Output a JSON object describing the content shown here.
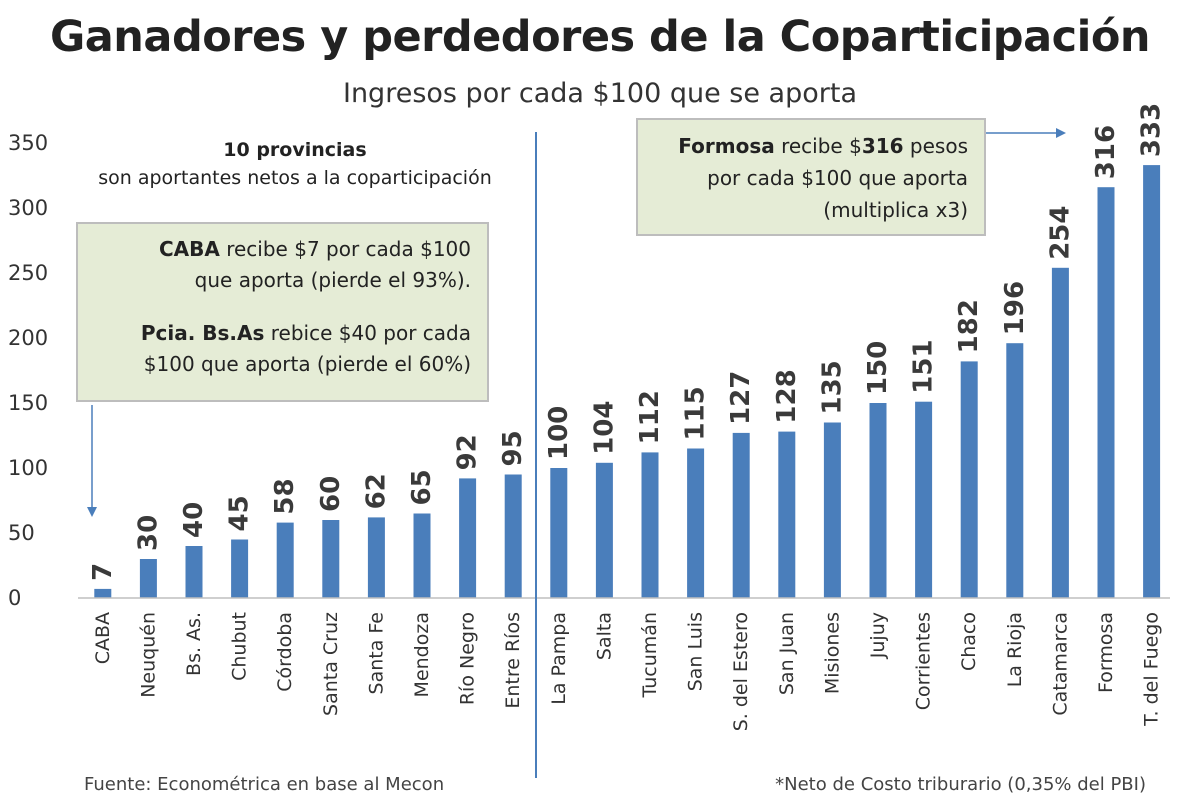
{
  "title": "Ganadores y perdedores de la Coparticipación",
  "subtitle": "Ingresos por cada $100 que se aporta",
  "chart_data": {
    "type": "bar",
    "categories": [
      "CABA",
      "Neuquén",
      "Bs. As.",
      "Chubut",
      "Córdoba",
      "Santa Cruz",
      "Santa Fe",
      "Mendoza",
      "Río Negro",
      "Entre Ríos",
      "La Pampa",
      "Salta",
      "Tucumán",
      "San Luis",
      "S. del Estero",
      "San Juan",
      "Misiones",
      "Jujuy",
      "Corrientes",
      "Chaco",
      "La Rioja",
      "Catamarca",
      "Formosa",
      "T. del Fuego"
    ],
    "values": [
      7,
      30,
      40,
      45,
      58,
      60,
      62,
      65,
      92,
      95,
      100,
      104,
      112,
      115,
      127,
      128,
      135,
      150,
      151,
      182,
      196,
      254,
      316,
      333
    ],
    "data_labels": [
      "7",
      "30",
      "40",
      "45",
      "58",
      "60",
      "62",
      "65",
      "92",
      "95",
      "100",
      "104",
      "112",
      "115",
      "127",
      "128",
      "135",
      "150",
      "151",
      "182",
      "196",
      "254",
      "316",
      "333"
    ],
    "yticks": [
      "0",
      "50",
      "100",
      "150",
      "200",
      "250",
      "300",
      "350"
    ],
    "ylim": [
      0,
      350
    ],
    "bar_color": "#4a7ebb",
    "grid": false,
    "divider_after_index": 9
  },
  "annotations": {
    "left_note": {
      "bold": "10 provincias",
      "text": "son aportantes netos a la coparticipación"
    },
    "caba_box": {
      "l1_bold": "CABA",
      "l1_rest": " recibe $7 por cada $100",
      "l2": "que aporta (pierde el 93%).",
      "l3_bold": "Pcia. Bs.As",
      "l3_rest": " rebice $40 por cada",
      "l4": "$100 que aporta (pierde el 60%)"
    },
    "formosa_box": {
      "l1_bold": "Formosa",
      "l1_mid": " recibe $",
      "l1_num": "316",
      "l1_end": " pesos",
      "l2": "por cada $100 que aporta",
      "l3": "(multiplica x3)"
    }
  },
  "footer": {
    "source": "Fuente: Econométrica en base al Mecon",
    "note": "*Neto de Costo triburario (0,35% del PBI)"
  }
}
